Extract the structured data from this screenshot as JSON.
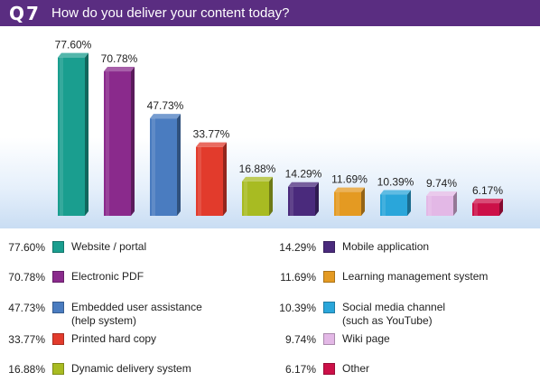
{
  "header": {
    "question": "Q7",
    "title": "How do you deliver your content today?",
    "color": "#5a2d81"
  },
  "chart_data": {
    "type": "bar",
    "title": "How do you deliver your content today?",
    "categories": [
      "Website / portal",
      "Electronic PDF",
      "Embedded user assistance (help system)",
      "Printed hard copy",
      "Dynamic delivery system",
      "Mobile application",
      "Learning management system",
      "Social media channel (such as YouTube)",
      "Wiki page",
      "Other"
    ],
    "values": [
      77.6,
      70.78,
      47.73,
      33.77,
      16.88,
      14.29,
      11.69,
      10.39,
      9.74,
      6.17
    ],
    "labels": [
      "77.60%",
      "70.78%",
      "47.73%",
      "33.77%",
      "16.88%",
      "14.29%",
      "11.69%",
      "10.39%",
      "9.74%",
      "6.17%"
    ],
    "colors": [
      "#1a9e8f",
      "#8a2a8c",
      "#4a7cc0",
      "#e23b2c",
      "#a8bb22",
      "#4a2a7c",
      "#e49a22",
      "#2aa6da",
      "#e3b8e6",
      "#cc1048"
    ],
    "ylim": [
      0,
      100
    ],
    "grid": false,
    "legend": "bottom"
  },
  "legend": {
    "items": [
      {
        "pct": "77.60%",
        "label": "Website / portal",
        "color": "#1a9e8f"
      },
      {
        "pct": "70.78%",
        "label": "Electronic PDF",
        "color": "#8a2a8c"
      },
      {
        "pct": "47.73%",
        "label": "Embedded user assistance",
        "label2": "(help system)",
        "color": "#4a7cc0"
      },
      {
        "pct": "33.77%",
        "label": "Printed hard copy",
        "color": "#e23b2c"
      },
      {
        "pct": "16.88%",
        "label": "Dynamic delivery system",
        "color": "#a8bb22"
      },
      {
        "pct": "14.29%",
        "label": "Mobile application",
        "color": "#4a2a7c"
      },
      {
        "pct": "11.69%",
        "label": "Learning management system",
        "color": "#e49a22"
      },
      {
        "pct": "10.39%",
        "label": "Social media channel",
        "label2": "(such as YouTube)",
        "color": "#2aa6da"
      },
      {
        "pct": "9.74%",
        "label": "Wiki page",
        "color": "#e3b8e6"
      },
      {
        "pct": "6.17%",
        "label": "Other",
        "color": "#cc1048"
      }
    ]
  }
}
